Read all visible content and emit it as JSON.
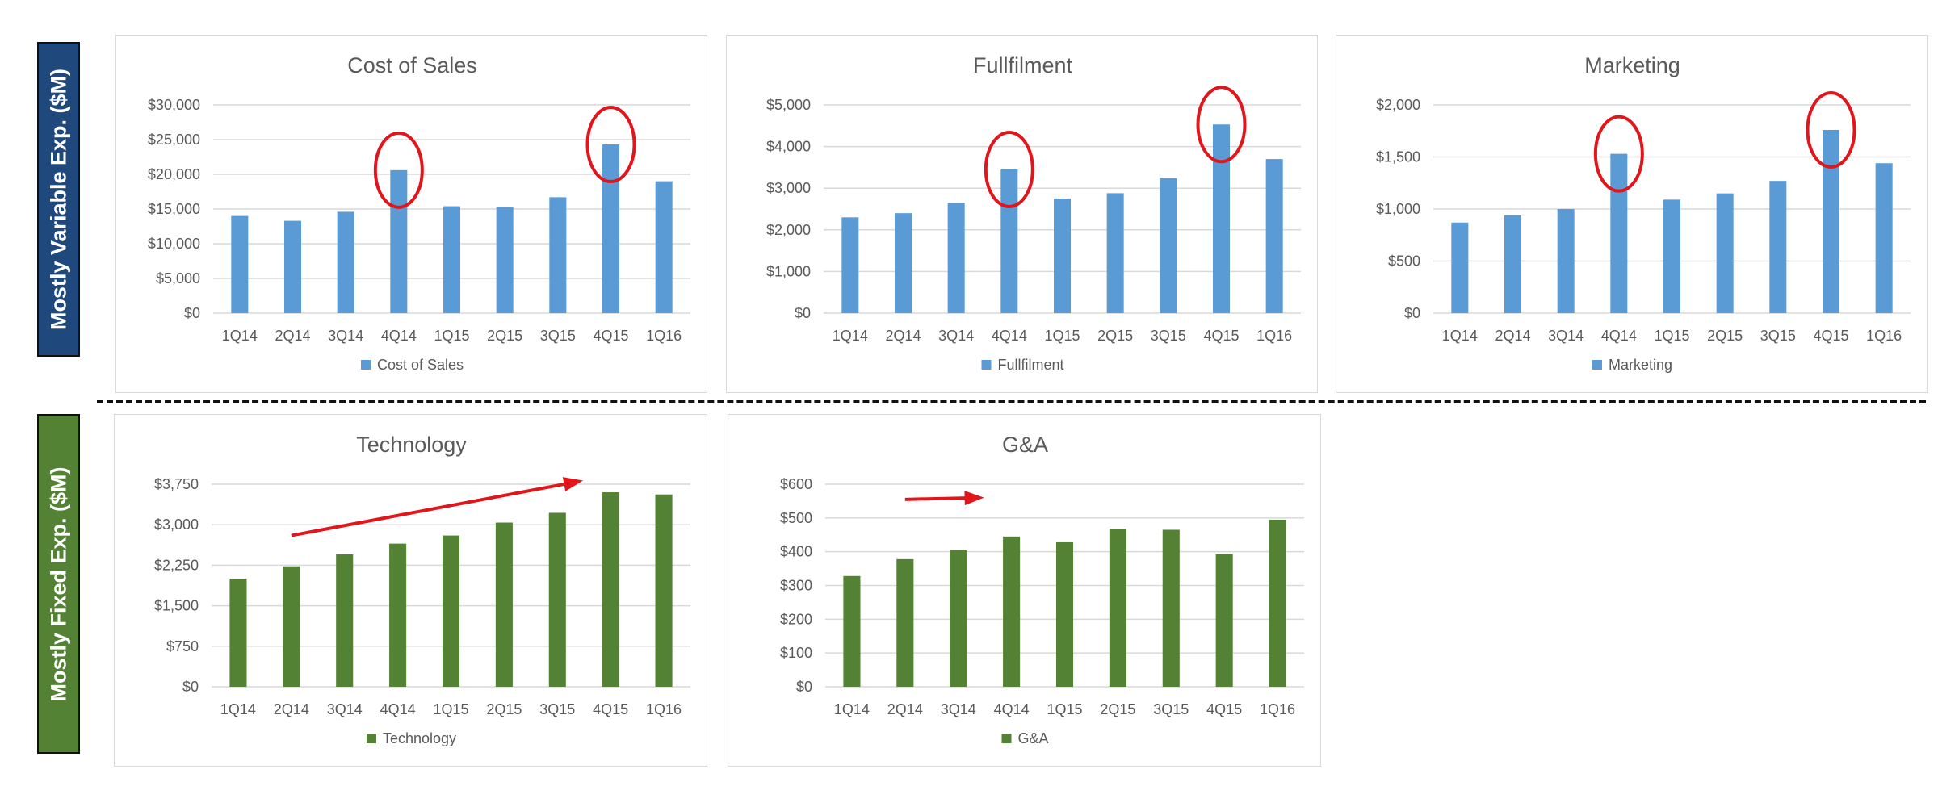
{
  "side_labels": {
    "top": "Mostly Variable Exp. ($M)",
    "bottom": "Mostly Fixed Exp. ($M)"
  },
  "colors": {
    "variable": "#5b9bd5",
    "fixed": "#548235",
    "side_top_bg": "#1f497d",
    "side_bottom_bg": "#548235",
    "annotation": "#e0161c",
    "gridline": "#d9d9d9",
    "text": "#595959"
  },
  "chart_data": [
    {
      "id": "cost-of-sales",
      "type": "bar",
      "title": "Cost of Sales",
      "categories": [
        "1Q14",
        "2Q14",
        "3Q14",
        "4Q14",
        "1Q15",
        "2Q15",
        "3Q15",
        "4Q15",
        "1Q16"
      ],
      "series": [
        {
          "name": "Cost of Sales",
          "values": [
            14000,
            13300,
            14600,
            20600,
            15400,
            15300,
            16700,
            24300,
            19000
          ]
        }
      ],
      "yticks": [
        "$0",
        "$5,000",
        "$10,000",
        "$15,000",
        "$20,000",
        "$25,000",
        "$30,000"
      ],
      "ylim": [
        0,
        30000
      ],
      "color": "variable",
      "grid": true,
      "legend": "bottom",
      "annotation": "circle",
      "circled_categories": [
        "4Q14",
        "4Q15"
      ]
    },
    {
      "id": "fulfilment",
      "type": "bar",
      "title": "Fullfilment",
      "categories": [
        "1Q14",
        "2Q14",
        "3Q14",
        "4Q14",
        "1Q15",
        "2Q15",
        "3Q15",
        "4Q15",
        "1Q16"
      ],
      "series": [
        {
          "name": "Fullfilment",
          "values": [
            2300,
            2400,
            2650,
            3450,
            2750,
            2880,
            3240,
            4530,
            3700
          ]
        }
      ],
      "yticks": [
        "$0",
        "$1,000",
        "$2,000",
        "$3,000",
        "$4,000",
        "$5,000"
      ],
      "ylim": [
        0,
        5000
      ],
      "color": "variable",
      "grid": true,
      "legend": "bottom",
      "annotation": "circle",
      "circled_categories": [
        "4Q14",
        "4Q15"
      ]
    },
    {
      "id": "marketing",
      "type": "bar",
      "title": "Marketing",
      "categories": [
        "1Q14",
        "2Q14",
        "3Q14",
        "4Q14",
        "1Q15",
        "2Q15",
        "3Q15",
        "4Q15",
        "1Q16"
      ],
      "series": [
        {
          "name": "Marketing",
          "values": [
            870,
            940,
            1000,
            1530,
            1090,
            1150,
            1270,
            1760,
            1440
          ]
        }
      ],
      "yticks": [
        "$0",
        "$500",
        "$1,000",
        "$1,500",
        "$2,000"
      ],
      "ylim": [
        0,
        2000
      ],
      "color": "variable",
      "grid": true,
      "legend": "bottom",
      "annotation": "circle",
      "circled_categories": [
        "4Q14",
        "4Q15"
      ]
    },
    {
      "id": "technology",
      "type": "bar",
      "title": "Technology",
      "categories": [
        "1Q14",
        "2Q14",
        "3Q14",
        "4Q14",
        "1Q15",
        "2Q15",
        "3Q15",
        "4Q15",
        "1Q16"
      ],
      "series": [
        {
          "name": "Technology",
          "values": [
            2000,
            2230,
            2450,
            2650,
            2800,
            3040,
            3220,
            3600,
            3560
          ]
        }
      ],
      "yticks": [
        "$0",
        "$750",
        "$1,500",
        "$2,250",
        "$3,000",
        "$3,750"
      ],
      "ylim": [
        0,
        3750
      ],
      "color": "fixed",
      "grid": true,
      "legend": "bottom",
      "annotation": "arrow",
      "arrow": {
        "from": {
          "category": "2Q14",
          "value": 2800
        },
        "to": {
          "category": "4Q15",
          "value": 3800
        }
      }
    },
    {
      "id": "g-and-a",
      "type": "bar",
      "title": "G&A",
      "categories": [
        "1Q14",
        "2Q14",
        "3Q14",
        "4Q14",
        "1Q15",
        "2Q15",
        "3Q15",
        "4Q15",
        "1Q16"
      ],
      "series": [
        {
          "name": "G&A",
          "values": [
            328,
            378,
            405,
            445,
            428,
            468,
            465,
            393,
            495
          ]
        }
      ],
      "yticks": [
        "$0",
        "$100",
        "$200",
        "$300",
        "$400",
        "$500",
        "$600"
      ],
      "ylim": [
        0,
        600
      ],
      "color": "fixed",
      "grid": true,
      "legend": "bottom",
      "annotation": "arrow",
      "arrow": {
        "from": {
          "category": "2Q14",
          "value": 555
        },
        "to": {
          "category": "4Q14",
          "value": 560
        }
      }
    }
  ]
}
